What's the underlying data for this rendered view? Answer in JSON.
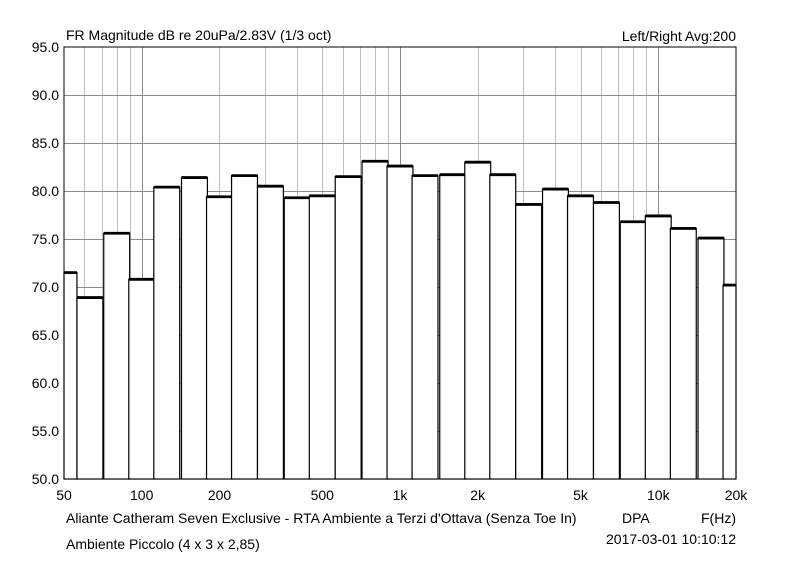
{
  "header": {
    "title": "FR Magnitude dB re 20uPa/2.83V (1/3 oct)",
    "channel_avg": "Left/Right  Avg:200"
  },
  "footer": {
    "description": "Aliante Catheram Seven Exclusive - RTA Ambiente a Terzi d'Ottava (Senza Toe In)",
    "brand": "DPA",
    "x_unit_label": "F(Hz)",
    "room": "Ambiente Piccolo (4 x 3 x 2,85)",
    "date_time": "2017-03-01  10:10:12"
  },
  "chart_data": {
    "type": "bar",
    "x_scale": "log",
    "title": "FR Magnitude dB re 20uPa/2.83V (1/3 oct)",
    "xlabel": "F(Hz)",
    "ylabel": "",
    "xlim": [
      50,
      20000
    ],
    "ylim": [
      50,
      95
    ],
    "grid": true,
    "y_ticks": [
      "50.0",
      "55.0",
      "60.0",
      "65.0",
      "70.0",
      "75.0",
      "80.0",
      "85.0",
      "90.0",
      "95.0"
    ],
    "x_ticks": [
      {
        "value": 50,
        "label": "50"
      },
      {
        "value": 100,
        "label": "100"
      },
      {
        "value": 200,
        "label": "200"
      },
      {
        "value": 500,
        "label": "500"
      },
      {
        "value": 1000,
        "label": "1k"
      },
      {
        "value": 2000,
        "label": "2k"
      },
      {
        "value": 5000,
        "label": "5k"
      },
      {
        "value": 10000,
        "label": "10k"
      },
      {
        "value": 20000,
        "label": "20k"
      }
    ],
    "categories": [
      "50",
      "63",
      "80",
      "100",
      "125",
      "160",
      "200",
      "250",
      "315",
      "400",
      "500",
      "630",
      "800",
      "1k",
      "1.25k",
      "1.6k",
      "2k",
      "2.5k",
      "3.15k",
      "4k",
      "5k",
      "6.3k",
      "8k",
      "10k",
      "12.5k",
      "16k",
      "20k"
    ],
    "center_hz": [
      50,
      63,
      80,
      100,
      125,
      160,
      200,
      250,
      315,
      400,
      500,
      630,
      800,
      1000,
      1250,
      1600,
      2000,
      2500,
      3150,
      4000,
      5000,
      6300,
      8000,
      10000,
      12500,
      16000,
      20000
    ],
    "values": [
      71.5,
      68.9,
      75.6,
      70.8,
      80.4,
      81.4,
      79.4,
      81.6,
      80.5,
      79.3,
      79.5,
      81.5,
      83.1,
      82.6,
      81.6,
      81.7,
      83.0,
      81.7,
      78.6,
      80.2,
      79.5,
      78.8,
      76.8,
      77.4,
      76.1,
      75.1,
      70.2
    ]
  }
}
